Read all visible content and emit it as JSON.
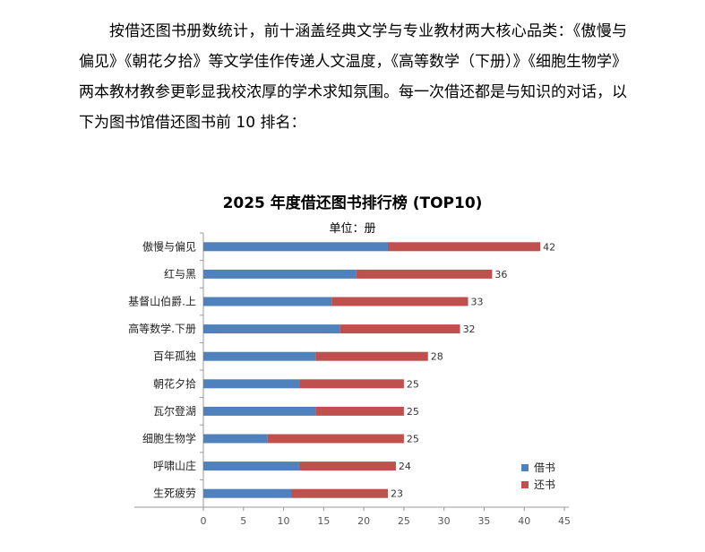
{
  "intro": {
    "text": "按借还图书册数统计，前十涵盖经典文学与专业教材两大核心品类：《傲慢与偏见》《朝花夕拾》等文学佳作传递人文温度，《高等数学（下册）》《细胞生物学》两本教材教参更彰显我校浓厚的学术求知氛围。每一次借还都是与知识的对话，以下为图书馆借还图书前 10 排名："
  },
  "chart_data": {
    "type": "bar",
    "orientation": "horizontal",
    "stacked": true,
    "title": "2025 年度借还图书排行榜 (TOP10)",
    "subtitle": "单位：册",
    "categories": [
      "傲慢与偏见",
      "红与黑",
      "基督山伯爵.上",
      "高等数学.下册",
      "百年孤独",
      "朝花夕拾",
      "瓦尔登湖",
      "细胞生物学",
      "呼啸山庄",
      "生死疲劳"
    ],
    "series": [
      {
        "name": "借书",
        "color": "#4F81BD",
        "values": [
          23,
          19,
          16,
          17,
          14,
          12,
          14,
          8,
          12,
          11
        ]
      },
      {
        "name": "还书",
        "color": "#C0504D",
        "values": [
          19,
          17,
          17,
          15,
          14,
          13,
          11,
          17,
          12,
          12
        ]
      }
    ],
    "totals": [
      42,
      36,
      33,
      32,
      28,
      25,
      25,
      25,
      24,
      23
    ],
    "xlim": [
      0,
      45
    ],
    "xticks": [
      0,
      5,
      10,
      15,
      20,
      25,
      30,
      35,
      40,
      45
    ],
    "grid": false,
    "legend_position": "bottom-right"
  }
}
